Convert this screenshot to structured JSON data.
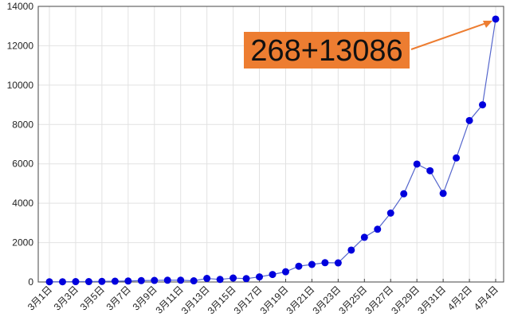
{
  "chart_data": {
    "type": "line",
    "categories": [
      "3月1日",
      null,
      "3月3日",
      null,
      "3月5日",
      null,
      "3月7日",
      null,
      "3月9日",
      null,
      "3月11日",
      null,
      "3月13日",
      null,
      "3月15日",
      null,
      "3月17日",
      null,
      "3月19日",
      null,
      "3月21日",
      null,
      "3月23日",
      null,
      "3月25日",
      null,
      "3月27日",
      null,
      "3月29日",
      null,
      "3月31日",
      null,
      "4月2日",
      null,
      "4月4日"
    ],
    "series": [
      {
        "color": "#0000dd",
        "values": [
          10,
          10,
          20,
          20,
          30,
          40,
          50,
          70,
          80,
          90,
          90,
          60,
          180,
          130,
          200,
          170,
          260,
          380,
          520,
          800,
          890,
          980,
          970,
          1620,
          2270,
          2680,
          3500,
          4480,
          5990,
          5650,
          4500,
          6300,
          8200,
          9000,
          13354
        ]
      }
    ],
    "ylim": [
      0,
      14000
    ],
    "yticks": [
      0,
      2000,
      4000,
      6000,
      8000,
      10000,
      12000,
      14000
    ],
    "grid": true,
    "annotation": "268+13086"
  }
}
